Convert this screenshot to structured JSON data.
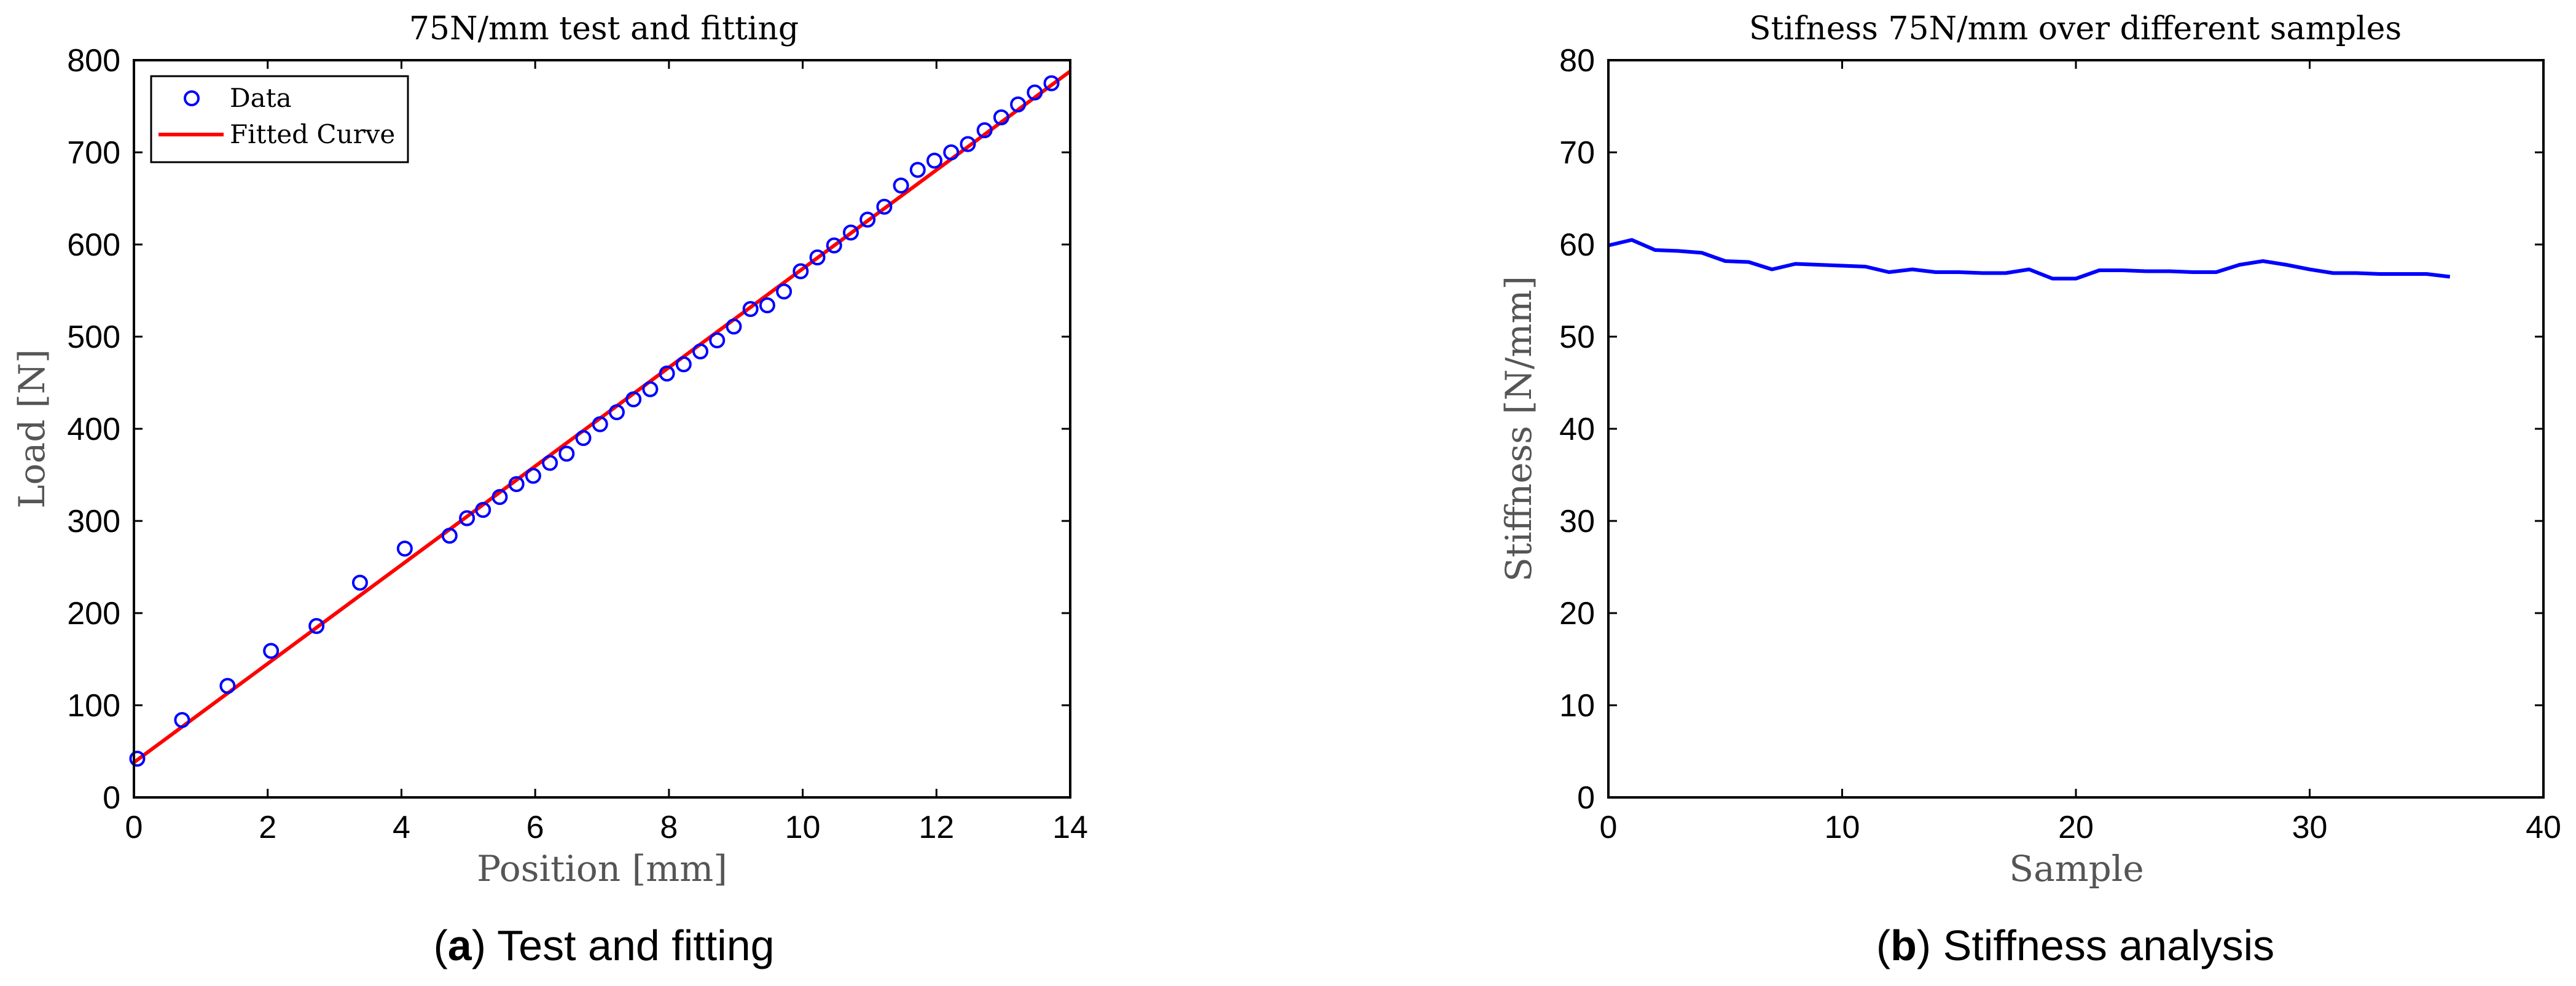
{
  "chart_data": [
    {
      "type": "scatter",
      "title": "75N/mm test and fitting",
      "xlabel": "Position [mm]",
      "ylabel": "Load [N]",
      "xlim": [
        0,
        14
      ],
      "ylim": [
        0,
        800
      ],
      "xticks": [
        "0",
        "2",
        "4",
        "6",
        "8",
        "10",
        "12",
        "14"
      ],
      "yticks": [
        "0",
        "100",
        "200",
        "300",
        "400",
        "500",
        "600",
        "700",
        "800"
      ],
      "legend_position": "top-left",
      "caption_letter": "a",
      "caption_text": " Test and fitting",
      "series": [
        {
          "name": "Data",
          "color": "#0000ff",
          "marker": "circle",
          "x": [
            0.05,
            0.72,
            1.4,
            2.05,
            2.73,
            3.38,
            4.05,
            4.72,
            4.98,
            5.22,
            5.47,
            5.72,
            5.97,
            6.22,
            6.47,
            6.72,
            6.97,
            7.22,
            7.47,
            7.72,
            7.97,
            8.22,
            8.47,
            8.72,
            8.97,
            9.22,
            9.47,
            9.72,
            9.97,
            10.22,
            10.47,
            10.72,
            10.97,
            11.22,
            11.47,
            11.72,
            11.97,
            12.22,
            12.47,
            12.72,
            12.97,
            13.22,
            13.47,
            13.72
          ],
          "y": [
            42,
            84,
            121,
            159,
            186,
            233,
            270,
            284,
            303,
            312,
            326,
            340,
            349,
            363,
            373,
            390,
            405,
            418,
            432,
            443,
            460,
            470,
            484,
            496,
            511,
            530,
            534,
            549,
            571,
            586,
            599,
            613,
            627,
            641,
            664,
            681,
            691,
            700,
            709,
            724,
            738,
            752,
            765,
            775
          ]
        },
        {
          "name": "Fitted Curve",
          "color": "#ff0000",
          "type": "line",
          "x": [
            0,
            14
          ],
          "y": [
            38,
            788
          ]
        }
      ]
    },
    {
      "type": "line",
      "title": "Stifness 75N/mm over different samples",
      "xlabel": "Sample",
      "ylabel": "Stiffness [N/mm]",
      "xlim": [
        0,
        40
      ],
      "ylim": [
        0,
        80
      ],
      "xticks": [
        "0",
        "10",
        "20",
        "30",
        "40"
      ],
      "yticks": [
        "0",
        "10",
        "20",
        "30",
        "40",
        "50",
        "60",
        "70",
        "80"
      ],
      "caption_letter": "b",
      "caption_text": " Stiffness analysis",
      "series": [
        {
          "color": "#0000ff",
          "x": [
            0,
            1,
            2,
            3,
            4,
            5,
            6,
            7,
            8,
            9,
            10,
            11,
            12,
            13,
            14,
            15,
            16,
            17,
            18,
            19,
            20,
            21,
            22,
            23,
            24,
            25,
            26,
            27,
            28,
            29,
            30,
            31,
            32,
            33,
            34,
            35,
            36
          ],
          "y": [
            59.9,
            60.5,
            59.4,
            59.3,
            59.1,
            58.2,
            58.1,
            57.3,
            57.9,
            57.8,
            57.7,
            57.6,
            57.0,
            57.3,
            57.0,
            57.0,
            56.9,
            56.9,
            57.3,
            56.3,
            56.3,
            57.2,
            57.2,
            57.1,
            57.1,
            57.0,
            57.0,
            57.8,
            58.2,
            57.8,
            57.3,
            56.9,
            56.9,
            56.8,
            56.8,
            56.8,
            56.5
          ]
        }
      ]
    }
  ]
}
